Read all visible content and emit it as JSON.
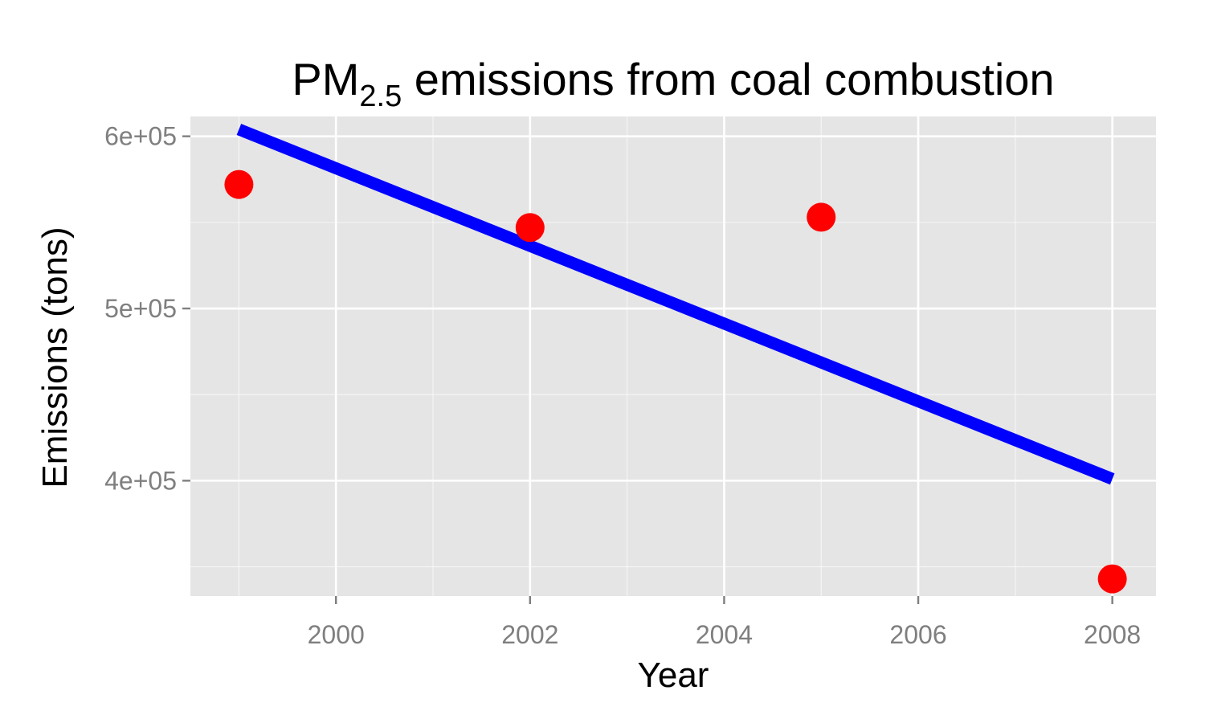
{
  "chart_data": {
    "type": "scatter",
    "title": {
      "main": "PM",
      "subscript": "2.5",
      "rest": " emissions from coal combustion"
    },
    "xlabel": "Year",
    "ylabel": "Emissions (tons)",
    "xlim": [
      1998.5,
      2008.45
    ],
    "ylim": [
      333000,
      611500
    ],
    "x_ticks": [
      2000,
      2002,
      2004,
      2006,
      2008
    ],
    "x_tick_labels": [
      "2000",
      "2002",
      "2004",
      "2006",
      "2008"
    ],
    "y_ticks": [
      400000,
      500000,
      600000
    ],
    "y_tick_labels": [
      "4e+05",
      "5e+05",
      "6e+05"
    ],
    "grid": true,
    "series": [
      {
        "kind": "points",
        "color": "#ff0000",
        "x": [
          1999,
          2002,
          2005,
          2008
        ],
        "y": [
          572000,
          547000,
          553000,
          343000
        ]
      },
      {
        "kind": "trend-line",
        "color": "#0000ff",
        "x": [
          1999,
          2008
        ],
        "y": [
          604000,
          401000
        ]
      }
    ],
    "colors": {
      "panel_background": "#e5e5e5",
      "grid": "#ffffff",
      "tick_text": "#7f7f7f"
    }
  }
}
